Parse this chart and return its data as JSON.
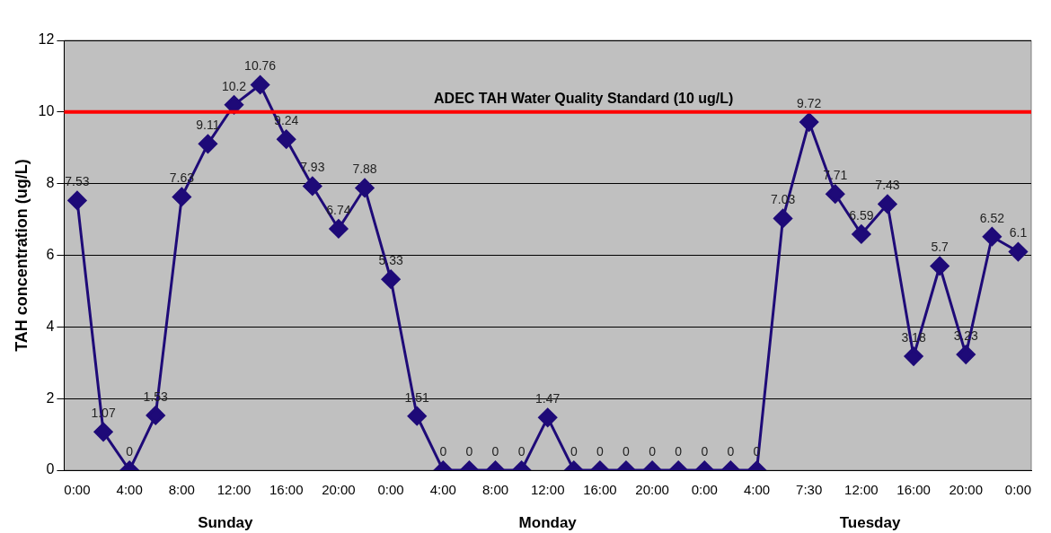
{
  "chart_data": {
    "type": "line",
    "ylabel": "TAH concentration (ug/L)",
    "categories": [
      "0:00",
      null,
      "4:00",
      null,
      "8:00",
      null,
      "12:00",
      null,
      "16:00",
      null,
      "20:00",
      null,
      "0:00",
      null,
      "4:00",
      null,
      "8:00",
      null,
      "12:00",
      null,
      "16:00",
      null,
      "20:00",
      null,
      "0:00",
      null,
      "4:00",
      null,
      "7:30",
      null,
      "12:00",
      null,
      "16:00",
      null,
      "20:00",
      null,
      "0:00"
    ],
    "series": [
      {
        "color": "#1e0a78",
        "values": [
          7.53,
          1.07,
          0,
          1.53,
          7.63,
          9.11,
          10.2,
          10.76,
          9.24,
          7.93,
          6.74,
          7.88,
          5.33,
          1.51,
          0,
          0,
          0,
          0,
          1.47,
          0,
          0,
          0,
          0,
          0,
          0,
          0,
          0,
          7.03,
          9.72,
          7.71,
          6.59,
          7.43,
          3.18,
          5.7,
          3.23,
          6.52,
          6.1
        ]
      }
    ],
    "ylim": [
      0,
      12
    ],
    "yticks": [
      0,
      2,
      4,
      6,
      8,
      10,
      12
    ],
    "grid": "y",
    "marker": "diamond",
    "data_labels": true,
    "ref_lines": [
      {
        "axis": "y",
        "value": 10,
        "label": "ADEC TAH Water Quality Standard (10 ug/L)",
        "color": "#ff0000"
      }
    ],
    "annotations": [
      "Sunday",
      "Monday",
      "Tuesday"
    ]
  }
}
